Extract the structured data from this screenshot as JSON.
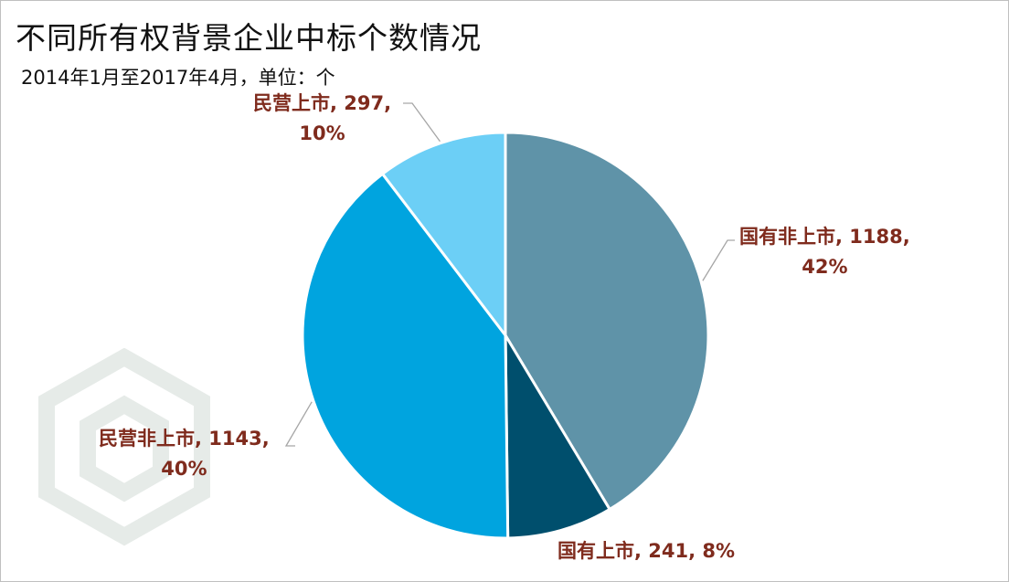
{
  "header": {
    "title": "不同所有权背景企业中标个数情况",
    "subtitle": "2014年1月至2017年4月，单位：个"
  },
  "chart_data": {
    "type": "pie",
    "title": "不同所有权背景企业中标个数情况",
    "subtitle": "2014年1月至2017年4月，单位：个",
    "start_angle_deg": 0,
    "direction": "clockwise",
    "slices": [
      {
        "name": "国有非上市",
        "value": 1188,
        "percent": "42%",
        "color": "#5f93a8",
        "label_line1": "国有非上市, 1188,",
        "label_line2": "42%"
      },
      {
        "name": "国有上市",
        "value": 241,
        "percent": "8%",
        "color": "#004f6d",
        "label_line1": "国有上市, 241, 8%",
        "label_line2": ""
      },
      {
        "name": "民营非上市",
        "value": 1143,
        "percent": "40%",
        "color": "#00a4df",
        "label_line1": "民营非上市, 1143,",
        "label_line2": "40%"
      },
      {
        "name": "民营上市",
        "value": 297,
        "percent": "10%",
        "color": "#6ccff6",
        "label_line1": "民营上市, 297,",
        "label_line2": "10%"
      }
    ],
    "label_color": "#7f2b1d",
    "leader_line_color": "#a6a6a6"
  }
}
